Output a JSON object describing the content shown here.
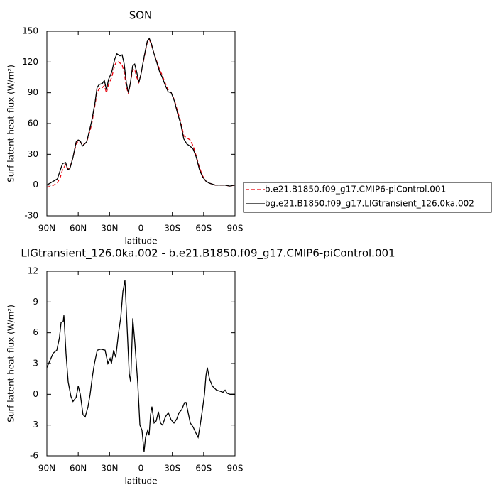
{
  "chart_data": [
    {
      "type": "line",
      "title": "SON",
      "xlabel": "latitude",
      "ylabel": "Surf latent heat flux (W/m²)",
      "xlim": [
        90,
        -90
      ],
      "ylim": [
        -30,
        150
      ],
      "xticks": [
        {
          "value": 90,
          "label": "90N"
        },
        {
          "value": 60,
          "label": "60N"
        },
        {
          "value": 30,
          "label": "30N"
        },
        0,
        {
          "value": -30,
          "label": "30S"
        },
        {
          "value": -60,
          "label": "60S"
        },
        {
          "value": -90,
          "label": "90S"
        }
      ],
      "yticks": [
        -30,
        0,
        30,
        60,
        90,
        120,
        150
      ],
      "legend": "right",
      "x": [
        90,
        85,
        80,
        77,
        75,
        72,
        70,
        68,
        65,
        62,
        60,
        58,
        56,
        54,
        52,
        50,
        47,
        44,
        42,
        40,
        37,
        35,
        33,
        31,
        28,
        25,
        23,
        20,
        18,
        16,
        14,
        12,
        10,
        8,
        6,
        4,
        2,
        0,
        -3,
        -6,
        -8,
        -10,
        -12,
        -15,
        -18,
        -20,
        -23,
        -26,
        -29,
        -32,
        -35,
        -38,
        -41,
        -44,
        -47,
        -50,
        -53,
        -56,
        -59,
        -62,
        -65,
        -68,
        -71,
        -75,
        -80,
        -85,
        -90
      ],
      "series": [
        {
          "name": "b.e21.B1850.f09_g17.CMIP6-piControl.001",
          "color": "#e8000b",
          "linestyle": "dashed",
          "values": [
            -2,
            -1,
            2,
            8,
            15,
            20,
            16,
            17,
            27,
            40,
            43,
            42,
            39,
            40,
            42,
            48,
            60,
            78,
            90,
            94,
            95,
            97,
            90,
            98,
            105,
            117,
            121,
            119,
            117,
            110,
            96,
            89,
            100,
            112,
            113,
            105,
            100,
            108,
            124,
            139,
            142,
            137,
            130,
            121,
            112,
            108,
            100,
            93,
            90,
            83,
            72,
            62,
            48,
            46,
            44,
            38,
            28,
            17,
            9,
            4,
            2,
            1,
            0,
            0,
            0,
            -1,
            0
          ]
        },
        {
          "name": "bg.e21.B1850.f09_g17.LIGtransient_126.0ka.002",
          "color": "#000000",
          "linestyle": "solid",
          "values": [
            0,
            3,
            6,
            15,
            21,
            22,
            15,
            16,
            27,
            42,
            44,
            43,
            38,
            40,
            42,
            50,
            63,
            80,
            95,
            98,
            99,
            102,
            93,
            103,
            110,
            123,
            128,
            126,
            127,
            118,
            100,
            90,
            100,
            116,
            118,
            110,
            100,
            108,
            125,
            140,
            143,
            138,
            130,
            120,
            110,
            106,
            98,
            91,
            90,
            82,
            70,
            60,
            45,
            40,
            38,
            35,
            27,
            15,
            8,
            4,
            2,
            1,
            0,
            0,
            0,
            -1,
            0
          ]
        }
      ]
    },
    {
      "type": "line",
      "title": "LIGtransient_126.0ka.002 - b.e21.B1850.f09_g17.CMIP6-piControl.001",
      "xlabel": "latitude",
      "ylabel": "Surf latent heat flux (W/m²)",
      "xlim": [
        90,
        -90
      ],
      "ylim": [
        -6,
        12
      ],
      "xticks": [
        {
          "value": 90,
          "label": "90N"
        },
        {
          "value": 60,
          "label": "60N"
        },
        {
          "value": 30,
          "label": "30N"
        },
        0,
        {
          "value": -30,
          "label": "30S"
        },
        {
          "value": -60,
          "label": "60S"
        },
        {
          "value": -90,
          "label": "90S"
        }
      ],
      "yticks": [
        -6,
        -3,
        0,
        3,
        6,
        9,
        12
      ],
      "x": [
        90,
        84,
        80.5,
        78,
        76.4,
        74.4,
        73.7,
        71.7,
        69.6,
        67,
        65,
        62,
        60,
        58,
        55.4,
        53.3,
        50.6,
        48.6,
        46.5,
        44.5,
        41.8,
        38.4,
        34.3,
        31.6,
        29.5,
        28.2,
        26.1,
        24.1,
        21.4,
        19.3,
        17.3,
        15.3,
        13.9,
        11.2,
        9.8,
        7.8,
        5.8,
        3,
        1,
        -1,
        -3,
        -4.4,
        -6.5,
        -7.8,
        -9.2,
        -10.5,
        -12.6,
        -14.6,
        -16.7,
        -18.7,
        -20.7,
        -23.4,
        -26.2,
        -28.9,
        -31.6,
        -34.3,
        -36.4,
        -39,
        -41.8,
        -43.2,
        -45.2,
        -47.2,
        -50,
        -52.7,
        -54.7,
        -56.7,
        -58.8,
        -60.8,
        -62.2,
        -63.5,
        -65.6,
        -68.3,
        -72.4,
        -75.8,
        -78.5,
        -80.5,
        -82.5,
        -85.3,
        -90
      ],
      "series": [
        {
          "color": "#000000",
          "linestyle": "solid",
          "values": [
            2.6,
            4.0,
            4.3,
            5.5,
            7,
            7.1,
            7.7,
            4,
            1.2,
            -0.2,
            -0.7,
            -0.3,
            0.8,
            0,
            -2,
            -2.2,
            -1.2,
            0,
            1.7,
            3,
            4.3,
            4.4,
            4.3,
            3,
            3.5,
            3.0,
            4.3,
            3.6,
            6.0,
            7.5,
            10,
            11.1,
            8,
            2,
            1.2,
            7.4,
            5,
            1,
            -3,
            -3.5,
            -5.6,
            -4.2,
            -3.5,
            -4,
            -2,
            -1.2,
            -2.8,
            -2.6,
            -1.7,
            -2.8,
            -3,
            -2.2,
            -1.8,
            -2.5,
            -2.8,
            -2.4,
            -1.8,
            -1.5,
            -0.8,
            -0.8,
            -1.8,
            -2.8,
            -3.2,
            -3.8,
            -4.2,
            -3,
            -1.5,
            0,
            1.8,
            2.6,
            1.5,
            0.8,
            0.4,
            0.3,
            0.2,
            0.4,
            0.1,
            0,
            0
          ]
        }
      ]
    }
  ]
}
